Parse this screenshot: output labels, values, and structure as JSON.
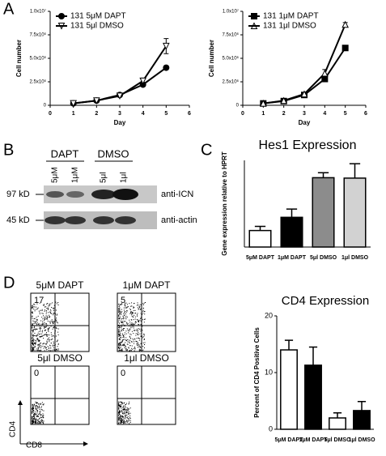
{
  "panel_labels": [
    "A",
    "B",
    "C",
    "D"
  ],
  "chart_data": [
    {
      "type": "line",
      "xlabel": "Day",
      "ylabel": "Cell number",
      "x": [
        1,
        2,
        3,
        4,
        5
      ],
      "xlim": [
        0,
        6
      ],
      "xticks": [
        0,
        1,
        2,
        3,
        4,
        5,
        6
      ],
      "ylim": [
        0,
        10000000
      ],
      "yticks": [
        0,
        {
          "value": 2500000,
          "label": "2.5x10⁶"
        },
        {
          "value": 5000000,
          "label": "5.0x10⁶"
        },
        {
          "value": 7500000,
          "label": "7.5x10⁶"
        },
        {
          "value": 10000000,
          "label": "1.0x10⁷"
        }
      ],
      "series": [
        {
          "name": "131 5μM DAPT",
          "color": "#000000",
          "marker": "circle",
          "marker_fill": "#000000",
          "values": [
            200000,
            500000,
            1100000,
            2200000,
            4000000
          ],
          "errors": [
            null,
            null,
            100000,
            200000,
            200000
          ]
        },
        {
          "name": "131 5μl DMSO",
          "color": "#000000",
          "marker": "triangle-down",
          "marker_fill": "#ffffff",
          "values": [
            200000,
            500000,
            1000000,
            2600000,
            6300000
          ],
          "errors": [
            null,
            null,
            100000,
            300000,
            800000
          ]
        }
      ]
    },
    {
      "type": "line",
      "xlabel": "Day",
      "ylabel": "Cell number",
      "x": [
        1,
        2,
        3,
        4,
        5
      ],
      "xlim": [
        0,
        6
      ],
      "xticks": [
        0,
        1,
        2,
        3,
        4,
        5,
        6
      ],
      "ylim": [
        0,
        10000000
      ],
      "yticks": [
        0,
        {
          "value": 2500000,
          "label": "2.5x10⁶"
        },
        {
          "value": 5000000,
          "label": "5.0x10⁶"
        },
        {
          "value": 7500000,
          "label": "7.5x10⁶"
        },
        {
          "value": 10000000,
          "label": "1.0x10⁷"
        }
      ],
      "series": [
        {
          "name": "131 1μM DAPT",
          "color": "#000000",
          "marker": "square",
          "marker_fill": "#000000",
          "values": [
            200000,
            450000,
            1100000,
            2800000,
            6100000
          ],
          "errors": [
            null,
            null,
            100000,
            200000,
            200000
          ]
        },
        {
          "name": "131 1μl DMSO",
          "color": "#000000",
          "marker": "triangle-up",
          "marker_fill": "#ffffff",
          "values": [
            200000,
            500000,
            1200000,
            3400000,
            8600000
          ],
          "errors": [
            null,
            null,
            100000,
            400000,
            200000
          ]
        }
      ]
    },
    {
      "type": "bar",
      "title": "Hes1 Expression",
      "ylabel": "Gene expression relative to HPRT",
      "categories": [
        "5μM DAPT",
        "1μM DAPT",
        "5μl DMSO",
        "1μl DMSO"
      ],
      "values": [
        0.4,
        0.72,
        1.68,
        1.67
      ],
      "errors": [
        0.1,
        0.2,
        0.12,
        0.35
      ],
      "colors": [
        "#ffffff",
        "#000000",
        "#8c8c8c",
        "#d2d2d2"
      ],
      "ylim": [
        0,
        2.1
      ]
    },
    {
      "type": "bar",
      "title": "CD4 Expression",
      "ylabel": "Percent of CD4 Positive Cells",
      "categories": [
        "5μM DAPT",
        "1μM DAPT",
        "5μl DMSO",
        "1μl DMSO"
      ],
      "values": [
        14,
        11.3,
        2,
        3.3
      ],
      "errors": [
        1.7,
        3.2,
        0.9,
        1.6
      ],
      "colors": [
        "#ffffff",
        "#000000",
        "#ffffff",
        "#000000"
      ],
      "ylim": [
        0,
        20
      ],
      "yticks": [
        0,
        10,
        20
      ]
    }
  ],
  "blot": {
    "groups": [
      "DAPT",
      "DMSO"
    ],
    "lanes": [
      "5μM",
      "1μM",
      "5μl",
      "1μl"
    ],
    "sizes": [
      "97 kD",
      "45 kD"
    ],
    "antibodies": [
      "anti-ICN",
      "anti-actin"
    ]
  },
  "flow": {
    "plots": [
      {
        "title": "5μM DAPT",
        "percent": 17
      },
      {
        "title": "1μM DAPT",
        "percent": 5
      },
      {
        "title": "5μl  DMSO",
        "percent": 0
      },
      {
        "title": "1μl DMSO",
        "percent": 0
      }
    ],
    "ylabel": "CD4",
    "xlabel": "CD8"
  }
}
